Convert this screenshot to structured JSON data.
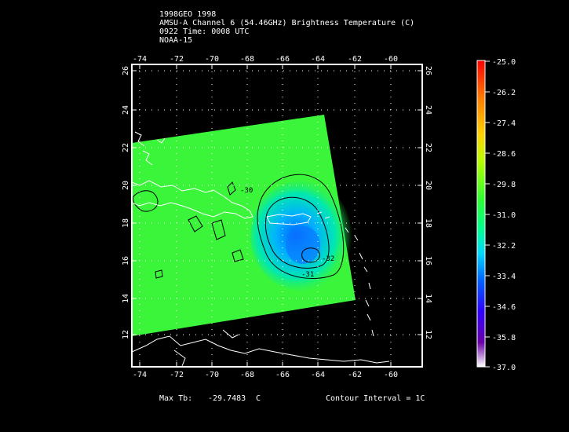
{
  "header": {
    "line1": "1998GEO 1998",
    "line2": "AMSU-A Channel 6 (54.46GHz) Brightness Temperature (C)",
    "line3": "0922 Time: 0008 UTC",
    "line4": "NOAA-15"
  },
  "axes": {
    "lon_ticks": [
      "-74",
      "-72",
      "-70",
      "-68",
      "-66",
      "-64",
      "-62",
      "-60"
    ],
    "lat_ticks": [
      "12",
      "14",
      "16",
      "18",
      "20",
      "22",
      "24",
      "26"
    ]
  },
  "contours": {
    "label_a": "-30",
    "label_b": "-31",
    "label_c": "-32"
  },
  "colorbar": {
    "labels": [
      "-25.0",
      "-26.2",
      "-27.4",
      "-28.6",
      "-29.8",
      "-31.0",
      "-32.2",
      "-33.4",
      "-34.6",
      "-35.8",
      "-37.0"
    ],
    "colors": [
      "#ff0000",
      "#ff7a00",
      "#ffd200",
      "#b8ff00",
      "#30ff30",
      "#00ff90",
      "#00d8ff",
      "#0060ff",
      "#3000ff",
      "#6a00a8",
      "#ffffff"
    ]
  },
  "footer": {
    "max_label": "Max Tb:",
    "max_value": "-29.7483",
    "max_unit": "C",
    "contour_text": "Contour Interval = 1C"
  },
  "colors": {
    "swath_field": "#3af53a",
    "frame": "#ffffff",
    "background": "#000000"
  }
}
